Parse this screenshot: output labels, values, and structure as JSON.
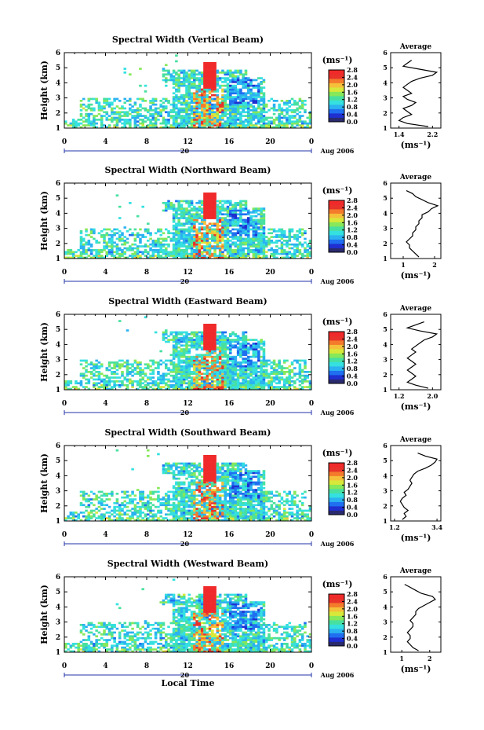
{
  "colors": {
    "colorbar": [
      "#2a2a6e",
      "#1f2fd0",
      "#1f6ff0",
      "#2bb2f0",
      "#35e0e0",
      "#48e0a0",
      "#86e85a",
      "#d8e83a",
      "#f5c03a",
      "#f47a2c",
      "#e8322a",
      "#f02a2a"
    ],
    "axis": "#000000",
    "time_axis": "#2233aa",
    "profile_line": "#000000"
  },
  "chart_data": [
    {
      "type": "heatmap",
      "title": "Spectral Width (Vertical Beam)",
      "ylabel": "Height (km)",
      "xlabel": "",
      "x_ticks": [
        "0",
        "4",
        "8",
        "12",
        "16",
        "20",
        "0"
      ],
      "xlim": [
        0,
        24
      ],
      "y_ticks": [
        "1",
        "2",
        "3",
        "4",
        "5",
        "6"
      ],
      "ylim": [
        1,
        6
      ],
      "date_label": "20",
      "month_label": "Aug 2006",
      "colorbar": {
        "unit": "(ms⁻¹)",
        "ticks": [
          "2.8",
          "2.4",
          "2.0",
          "1.6",
          "1.2",
          "0.8",
          "0.4",
          "0.0"
        ],
        "range": [
          0,
          2.8
        ]
      },
      "profile": {
        "title": "Average",
        "xlabel": "(ms⁻¹)",
        "x_ticks": [
          "1.4",
          "2.2"
        ],
        "xlim": [
          1.2,
          2.4
        ],
        "y_ticks": [
          "1",
          "2",
          "3",
          "4",
          "5",
          "6"
        ],
        "ylim": [
          1,
          6
        ],
        "heights": [
          1.1,
          1.3,
          1.5,
          1.7,
          1.9,
          2.1,
          2.3,
          2.5,
          2.7,
          2.9,
          3.1,
          3.3,
          3.5,
          3.7,
          3.9,
          4.1,
          4.3,
          4.5,
          4.7,
          4.9,
          5.1,
          5.3,
          5.5
        ],
        "values": [
          2.1,
          1.6,
          1.4,
          1.5,
          1.7,
          1.6,
          1.5,
          1.7,
          1.8,
          1.6,
          1.5,
          1.7,
          1.6,
          1.5,
          1.6,
          1.7,
          1.9,
          2.2,
          2.3,
          1.9,
          1.5,
          1.6,
          1.7
        ]
      }
    },
    {
      "type": "heatmap",
      "title": "Spectral Width (Northward Beam)",
      "ylabel": "Height (km)",
      "xlabel": "",
      "x_ticks": [
        "0",
        "4",
        "8",
        "12",
        "16",
        "20",
        "0"
      ],
      "xlim": [
        0,
        24
      ],
      "y_ticks": [
        "1",
        "2",
        "3",
        "4",
        "5",
        "6"
      ],
      "ylim": [
        1,
        6
      ],
      "date_label": "20",
      "month_label": "Aug 2006",
      "colorbar": {
        "unit": "(ms⁻¹)",
        "ticks": [
          "2.8",
          "2.4",
          "2.0",
          "1.6",
          "1.2",
          "0.8",
          "0.4",
          "0.0"
        ],
        "range": [
          0,
          2.8
        ]
      },
      "profile": {
        "title": "Average",
        "xlabel": "(ms⁻¹)",
        "x_ticks": [
          "1",
          "2"
        ],
        "xlim": [
          0.6,
          2.2
        ],
        "y_ticks": [
          "1",
          "2",
          "3",
          "4",
          "5",
          "6"
        ],
        "ylim": [
          1,
          6
        ],
        "heights": [
          1.1,
          1.3,
          1.5,
          1.7,
          1.9,
          2.1,
          2.3,
          2.5,
          2.7,
          2.9,
          3.1,
          3.3,
          3.5,
          3.7,
          3.9,
          4.1,
          4.3,
          4.5,
          4.7,
          4.9,
          5.1,
          5.3,
          5.5
        ],
        "values": [
          1.5,
          1.4,
          1.3,
          1.2,
          1.2,
          1.1,
          1.2,
          1.3,
          1.3,
          1.4,
          1.4,
          1.5,
          1.5,
          1.6,
          1.6,
          1.8,
          1.9,
          2.1,
          1.8,
          1.6,
          1.4,
          1.3,
          1.1
        ]
      }
    },
    {
      "type": "heatmap",
      "title": "Spectral Width (Eastward Beam)",
      "ylabel": "Height (km)",
      "xlabel": "",
      "x_ticks": [
        "0",
        "4",
        "8",
        "12",
        "16",
        "20",
        "0"
      ],
      "xlim": [
        0,
        24
      ],
      "y_ticks": [
        "1",
        "2",
        "3",
        "4",
        "5",
        "6"
      ],
      "ylim": [
        1,
        6
      ],
      "date_label": "20",
      "month_label": "Aug 2006",
      "colorbar": {
        "unit": "(ms⁻¹)",
        "ticks": [
          "2.8",
          "2.4",
          "2.0",
          "1.6",
          "1.2",
          "0.8",
          "0.4",
          "0.0"
        ],
        "range": [
          0,
          2.8
        ]
      },
      "profile": {
        "title": "Average",
        "xlabel": "(ms⁻¹)",
        "x_ticks": [
          "1.2",
          "2.0"
        ],
        "xlim": [
          1.0,
          2.2
        ],
        "y_ticks": [
          "1",
          "2",
          "3",
          "4",
          "5",
          "6"
        ],
        "ylim": [
          1,
          6
        ],
        "heights": [
          1.1,
          1.3,
          1.5,
          1.7,
          1.9,
          2.1,
          2.3,
          2.5,
          2.7,
          2.9,
          3.1,
          3.3,
          3.5,
          3.7,
          3.9,
          4.1,
          4.3,
          4.5,
          4.7,
          4.9,
          5.1,
          5.3,
          5.5
        ],
        "values": [
          1.9,
          1.6,
          1.4,
          1.5,
          1.6,
          1.5,
          1.4,
          1.5,
          1.6,
          1.5,
          1.4,
          1.5,
          1.6,
          1.5,
          1.6,
          1.7,
          1.8,
          2.0,
          2.1,
          1.7,
          1.4,
          1.6,
          1.8
        ]
      }
    },
    {
      "type": "heatmap",
      "title": "Spectral Width (Southward Beam)",
      "ylabel": "Height (km)",
      "xlabel": "",
      "x_ticks": [
        "0",
        "4",
        "8",
        "12",
        "16",
        "20",
        "0"
      ],
      "xlim": [
        0,
        24
      ],
      "y_ticks": [
        "1",
        "2",
        "3",
        "4",
        "5",
        "6"
      ],
      "ylim": [
        1,
        6
      ],
      "date_label": "20",
      "month_label": "Aug 2006",
      "colorbar": {
        "unit": "(ms⁻¹)",
        "ticks": [
          "2.8",
          "2.4",
          "2.0",
          "1.6",
          "1.2",
          "0.8",
          "0.4",
          "0.0"
        ],
        "range": [
          0,
          2.8
        ]
      },
      "profile": {
        "title": "Average",
        "xlabel": "(ms⁻¹)",
        "x_ticks": [
          "1.2",
          "3.4"
        ],
        "xlim": [
          1.0,
          3.6
        ],
        "y_ticks": [
          "1",
          "2",
          "3",
          "4",
          "5",
          "6"
        ],
        "ylim": [
          1,
          6
        ],
        "heights": [
          1.1,
          1.3,
          1.5,
          1.7,
          1.9,
          2.1,
          2.3,
          2.5,
          2.7,
          2.9,
          3.1,
          3.3,
          3.5,
          3.7,
          3.9,
          4.1,
          4.3,
          4.5,
          4.7,
          4.9,
          5.1,
          5.3,
          5.5
        ],
        "values": [
          1.6,
          1.8,
          1.7,
          1.9,
          1.7,
          1.6,
          1.5,
          1.6,
          1.8,
          1.7,
          1.9,
          2.0,
          2.1,
          2.0,
          2.1,
          2.2,
          2.4,
          2.8,
          3.1,
          3.3,
          3.4,
          2.8,
          2.4
        ]
      }
    },
    {
      "type": "heatmap",
      "title": "Spectral Width (Westward Beam)",
      "ylabel": "Height (km)",
      "xlabel": "Local Time",
      "x_ticks": [
        "0",
        "4",
        "8",
        "12",
        "16",
        "20",
        "0"
      ],
      "xlim": [
        0,
        24
      ],
      "y_ticks": [
        "1",
        "2",
        "3",
        "4",
        "5",
        "6"
      ],
      "ylim": [
        1,
        6
      ],
      "date_label": "20",
      "month_label": "Aug 2006",
      "colorbar": {
        "unit": "(ms⁻¹)",
        "ticks": [
          "2.8",
          "2.4",
          "2.0",
          "1.6",
          "1.2",
          "0.8",
          "0.4",
          "0.0"
        ],
        "range": [
          0,
          2.8
        ]
      },
      "profile": {
        "title": "Average",
        "xlabel": "(ms⁻¹)",
        "x_ticks": [
          "1",
          "2"
        ],
        "xlim": [
          0.6,
          2.4
        ],
        "y_ticks": [
          "1",
          "2",
          "3",
          "4",
          "5",
          "6"
        ],
        "ylim": [
          1,
          6
        ],
        "heights": [
          1.1,
          1.3,
          1.5,
          1.7,
          1.9,
          2.1,
          2.3,
          2.5,
          2.7,
          2.9,
          3.1,
          3.3,
          3.5,
          3.7,
          3.9,
          4.1,
          4.3,
          4.5,
          4.7,
          4.9,
          5.1,
          5.3,
          5.5
        ],
        "values": [
          1.6,
          1.4,
          1.3,
          1.2,
          1.3,
          1.3,
          1.2,
          1.3,
          1.4,
          1.4,
          1.3,
          1.4,
          1.5,
          1.5,
          1.6,
          1.8,
          2.0,
          2.2,
          2.1,
          1.7,
          1.5,
          1.3,
          1.1
        ]
      }
    }
  ]
}
